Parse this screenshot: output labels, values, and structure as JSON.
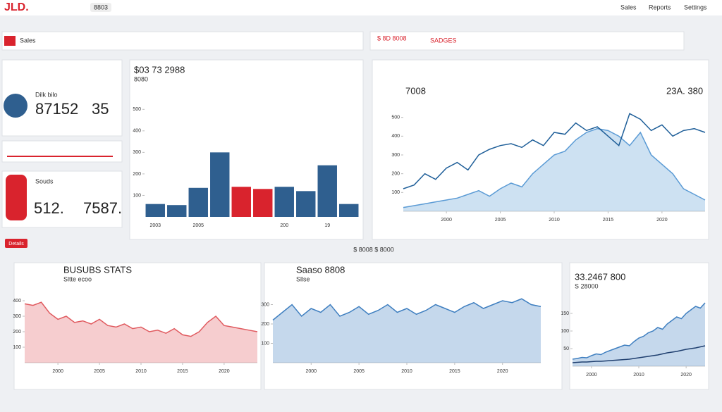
{
  "header": {
    "logo": "JLD.",
    "search": "8803",
    "nav": [
      "Sales",
      "Reports",
      "Settings"
    ]
  },
  "toolbar": {
    "tab": "Sales",
    "filter": "$ 8D 8008",
    "badge": "SADGES"
  },
  "kpis": [
    {
      "label": "Dilk bilo",
      "value": "87152",
      "delta": "35"
    },
    {
      "label": "Souds",
      "value": "512.",
      "delta": "7587."
    }
  ],
  "button": "Details",
  "caption": "$ 8008 $ 8000",
  "chart_data": [
    {
      "type": "bar",
      "title": "$03 73 2988",
      "subtitle": "8080",
      "categories": [
        "2003",
        null,
        "2005",
        null,
        null,
        null,
        "200",
        null,
        "19",
        null
      ],
      "values": [
        60,
        55,
        135,
        300,
        140,
        130,
        140,
        120,
        240,
        60
      ],
      "colors": [
        "#2f5f8f",
        "#2f5f8f",
        "#2f5f8f",
        "#2f5f8f",
        "#d9232d",
        "#d9232d",
        "#2f5f8f",
        "#2f5f8f",
        "#2f5f8f",
        "#2f5f8f"
      ],
      "ylim": [
        0,
        550
      ],
      "yticks": [
        100,
        200,
        300,
        400,
        500
      ],
      "grid": false
    },
    {
      "type": "line",
      "title": "7008",
      "subtitle": "23A. 380",
      "x": [
        1996,
        1997,
        1998,
        1999,
        2000,
        2001,
        2002,
        2003,
        2004,
        2005,
        2006,
        2007,
        2008,
        2009,
        2010,
        2011,
        2012,
        2013,
        2014,
        2015,
        2016,
        2017,
        2018,
        2019,
        2020,
        2021,
        2022,
        2023,
        2024
      ],
      "xlim": [
        1996,
        2024
      ],
      "xticks": [
        2000,
        2005,
        2010,
        2015,
        2020
      ],
      "ylim": [
        0,
        600
      ],
      "yticks": [
        100,
        200,
        300,
        400,
        500
      ],
      "grid": false,
      "series": [
        {
          "color": "#5b9bd5",
          "fill": true,
          "values": [
            20,
            30,
            40,
            50,
            60,
            70,
            90,
            110,
            80,
            120,
            150,
            130,
            200,
            250,
            300,
            320,
            380,
            420,
            440,
            430,
            400,
            350,
            420,
            300,
            250,
            200,
            120,
            90,
            60
          ]
        },
        {
          "color": "#1f5f99",
          "fill": false,
          "values": [
            120,
            140,
            200,
            170,
            230,
            260,
            220,
            300,
            330,
            350,
            360,
            340,
            380,
            350,
            420,
            410,
            470,
            430,
            450,
            400,
            350,
            520,
            490,
            430,
            460,
            400,
            430,
            440,
            420
          ]
        }
      ]
    },
    {
      "type": "line",
      "title": "BUSUBS STATS",
      "subtitle": "Sltte ecoo",
      "x": [
        1996,
        1997,
        1998,
        1999,
        2000,
        2001,
        2002,
        2003,
        2004,
        2005,
        2006,
        2007,
        2008,
        2009,
        2010,
        2011,
        2012,
        2013,
        2014,
        2015,
        2016,
        2017,
        2018,
        2019,
        2020,
        2021,
        2022,
        2023,
        2024
      ],
      "xlim": [
        1996,
        2024
      ],
      "xticks": [
        2000,
        2005,
        2010,
        2015,
        2020
      ],
      "ylim": [
        0,
        500
      ],
      "yticks": [
        100,
        200,
        300,
        400
      ],
      "grid": false,
      "series": [
        {
          "color": "#e05a5f",
          "fill": true,
          "values": [
            380,
            370,
            390,
            320,
            280,
            300,
            260,
            270,
            250,
            280,
            240,
            230,
            250,
            220,
            230,
            200,
            210,
            190,
            220,
            180,
            170,
            200,
            260,
            300,
            240,
            230,
            220,
            210,
            200
          ]
        }
      ]
    },
    {
      "type": "line",
      "title": "Saaso 8808",
      "subtitle": "Sllse",
      "x": [
        1996,
        1997,
        1998,
        1999,
        2000,
        2001,
        2002,
        2003,
        2004,
        2005,
        2006,
        2007,
        2008,
        2009,
        2010,
        2011,
        2012,
        2013,
        2014,
        2015,
        2016,
        2017,
        2018,
        2019,
        2020,
        2021,
        2022,
        2023,
        2024
      ],
      "xlim": [
        1996,
        2024
      ],
      "xticks": [
        2000,
        2005,
        2010,
        2015,
        2020
      ],
      "ylim": [
        0,
        400
      ],
      "yticks": [
        100,
        200,
        300
      ],
      "grid": false,
      "series": [
        {
          "color": "#3f7fc0",
          "fill": true,
          "values": [
            220,
            260,
            300,
            240,
            280,
            260,
            300,
            240,
            260,
            290,
            250,
            270,
            300,
            260,
            280,
            250,
            270,
            300,
            280,
            260,
            290,
            310,
            280,
            300,
            320,
            310,
            330,
            300,
            290
          ]
        }
      ]
    },
    {
      "type": "line",
      "title": "33.2467 800",
      "subtitle": "S 28000",
      "x": [
        1996,
        1997,
        1998,
        1999,
        2000,
        2001,
        2002,
        2003,
        2004,
        2005,
        2006,
        2007,
        2008,
        2009,
        2010,
        2011,
        2012,
        2013,
        2014,
        2015,
        2016,
        2017,
        2018,
        2019,
        2020,
        2021,
        2022,
        2023,
        2024
      ],
      "xlim": [
        1996,
        2024
      ],
      "xticks": [
        2000,
        2010,
        2020
      ],
      "ylim": [
        0,
        200
      ],
      "yticks": [
        50,
        100,
        150
      ],
      "grid": false,
      "series": [
        {
          "color": "#3f7fc0",
          "fill": true,
          "values": [
            20,
            22,
            25,
            24,
            30,
            35,
            33,
            40,
            45,
            50,
            55,
            60,
            58,
            70,
            80,
            85,
            95,
            100,
            110,
            105,
            120,
            130,
            140,
            135,
            150,
            160,
            170,
            165,
            180
          ]
        },
        {
          "color": "#1f3f6f",
          "fill": false,
          "values": [
            10,
            11,
            12,
            12,
            13,
            14,
            14,
            15,
            16,
            17,
            18,
            19,
            20,
            22,
            24,
            26,
            28,
            30,
            32,
            35,
            38,
            40,
            42,
            45,
            48,
            50,
            52,
            55,
            58
          ]
        }
      ]
    }
  ]
}
